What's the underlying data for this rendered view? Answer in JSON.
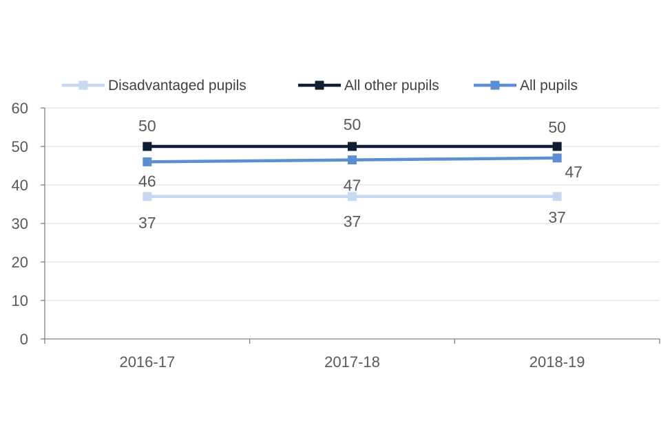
{
  "chart_data": {
    "type": "line",
    "title": "",
    "xlabel": "",
    "ylabel": "",
    "categories": [
      "2016-17",
      "2017-18",
      "2018-19"
    ],
    "ylim": [
      0,
      60
    ],
    "yticks": [
      0,
      10,
      20,
      30,
      40,
      50,
      60
    ],
    "grid": true,
    "legend_position": "top",
    "series": [
      {
        "name": "Disadvantaged pupils",
        "values": [
          37,
          37,
          37
        ],
        "labels": [
          "37",
          "37",
          "37"
        ],
        "color": "#c6d9f0"
      },
      {
        "name": "All other pupils",
        "values": [
          50,
          50,
          50
        ],
        "labels": [
          "50",
          "50",
          "50"
        ],
        "color": "#0f1f33"
      },
      {
        "name": "All pupils",
        "values": [
          46,
          46.5,
          47
        ],
        "labels": [
          "46",
          "47",
          "47"
        ],
        "color": "#5b8fd1"
      }
    ]
  }
}
